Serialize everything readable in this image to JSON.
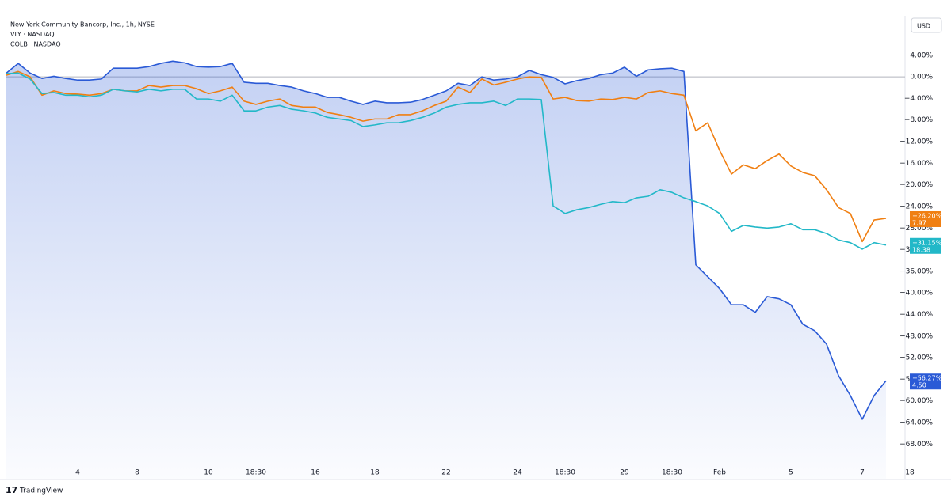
{
  "chart_data": {
    "type": "line",
    "currency": "USD",
    "brand": "TradingView",
    "categories": [
      null,
      null,
      null,
      null,
      null,
      null,
      "4",
      null,
      null,
      null,
      null,
      "8",
      null,
      null,
      null,
      null,
      null,
      "10",
      null,
      null,
      null,
      "18:30",
      null,
      null,
      null,
      null,
      "16",
      null,
      null,
      null,
      null,
      "18",
      null,
      null,
      null,
      null,
      null,
      "22",
      null,
      null,
      null,
      null,
      null,
      "24",
      null,
      null,
      null,
      "18:30",
      null,
      null,
      null,
      null,
      "29",
      null,
      null,
      null,
      "18:30",
      null,
      null,
      null,
      "Feb",
      null,
      null,
      null,
      null,
      null,
      "5",
      null,
      null,
      null,
      null,
      null,
      "7",
      null,
      null,
      null,
      "18"
    ],
    "ylim": [
      -74.4,
      11.3
    ],
    "yticks": [
      {
        "value": 4,
        "label": "4.00%"
      },
      {
        "value": 0,
        "label": "0.00%"
      },
      {
        "value": -4,
        "label": "−4.00%"
      },
      {
        "value": -8,
        "label": "−8.00%"
      },
      {
        "value": -12,
        "label": "−12.00%"
      },
      {
        "value": -16,
        "label": "−16.00%"
      },
      {
        "value": -20,
        "label": "−20.00%"
      },
      {
        "value": -24,
        "label": "−24.00%"
      },
      {
        "value": -28,
        "label": "−28.00%"
      },
      {
        "value": -32,
        "label": "−32.00%"
      },
      {
        "value": -36,
        "label": "−36.00%"
      },
      {
        "value": -40,
        "label": "−40.00%"
      },
      {
        "value": -44,
        "label": "−44.00%"
      },
      {
        "value": -48,
        "label": "−48.00%"
      },
      {
        "value": -52,
        "label": "−52.00%"
      },
      {
        "value": -56,
        "label": "−56.00%"
      },
      {
        "value": -60,
        "label": "−60.00%"
      },
      {
        "value": -64,
        "label": "−64.00%"
      },
      {
        "value": -68,
        "label": "−68.00%"
      }
    ],
    "series": [
      {
        "name": "New York Community Bancorp, Inc., 1h, NYSE",
        "color": "#2a5ad6",
        "fill": true,
        "last_value_label": "−56.27%",
        "last_price": {
          "value": 4.5,
          "label": "4.50"
        },
        "values": [
          0.7,
          2.5,
          0.7,
          -0.3,
          0.1,
          -0.3,
          -0.6,
          -0.6,
          -0.4,
          1.6,
          1.6,
          1.6,
          1.9,
          2.5,
          2.9,
          2.6,
          1.9,
          1.8,
          1.9,
          2.5,
          -1.0,
          -1.2,
          -1.2,
          -1.6,
          -1.9,
          -2.6,
          -3.1,
          -3.8,
          -3.8,
          -4.5,
          -5.1,
          -4.5,
          -4.8,
          -4.8,
          -4.7,
          -4.2,
          -3.4,
          -2.6,
          -1.2,
          -1.6,
          0,
          -0.6,
          -0.4,
          0,
          1.2,
          0.4,
          -0.1,
          -1.3,
          -0.7,
          -0.3,
          0.4,
          0.7,
          1.8,
          0.1,
          1.3,
          1.5,
          1.6,
          1.0,
          -34.8,
          -37,
          -39.2,
          -42.2,
          -42.2,
          -43.6,
          -40.7,
          -41.1,
          -42.2,
          -45.8,
          -47,
          -49.5,
          -55.3,
          -59,
          -63.4,
          -59,
          -56.27,
          null,
          null
        ]
      },
      {
        "name": "VLY · NASDAQ",
        "color": "#f07f12",
        "fill": false,
        "last_value_label": "−26.20%",
        "last_price": 7.97,
        "values": [
          0.3,
          1.0,
          0,
          -3.4,
          -2.6,
          -3.1,
          -3.2,
          -3.4,
          -3.1,
          -2.3,
          -2.6,
          -2.6,
          -1.6,
          -1.9,
          -1.6,
          -1.6,
          -2.2,
          -3.1,
          -2.6,
          -1.9,
          -4.5,
          -5.1,
          -4.5,
          -4.1,
          -5.3,
          -5.6,
          -5.6,
          -6.6,
          -7.0,
          -7.5,
          -8.2,
          -7.8,
          -7.8,
          -7.0,
          -7.0,
          -6.3,
          -5.3,
          -4.5,
          -1.9,
          -2.9,
          -0.4,
          -1.5,
          -1.0,
          -0.4,
          0,
          -0.1,
          -4.1,
          -3.8,
          -4.4,
          -4.5,
          -4.1,
          -4.2,
          -3.8,
          -4.1,
          -2.9,
          -2.6,
          -3.1,
          -3.4,
          -10.0,
          -8.5,
          -13.6,
          -18,
          -16.3,
          -17,
          -15.5,
          -14.3,
          -16.5,
          -17.7,
          -18.3,
          -20.9,
          -24.2,
          -25.3,
          -30.5,
          -26.5,
          -26.2,
          null,
          null
        ]
      },
      {
        "name": "COLB · NASDAQ",
        "color": "#22b8c8",
        "fill": false,
        "last_value_label": "−31.15%",
        "last_price": 18.38,
        "values": [
          0.6,
          0.7,
          -0.4,
          -3.1,
          -2.9,
          -3.4,
          -3.4,
          -3.7,
          -3.4,
          -2.3,
          -2.6,
          -2.8,
          -2.3,
          -2.6,
          -2.3,
          -2.3,
          -4.1,
          -4.1,
          -4.5,
          -3.4,
          -6.3,
          -6.3,
          -5.6,
          -5.3,
          -6.0,
          -6.3,
          -6.7,
          -7.5,
          -7.8,
          -8.1,
          -9.2,
          -8.9,
          -8.5,
          -8.5,
          -8.1,
          -7.5,
          -6.7,
          -5.6,
          -5.1,
          -4.8,
          -4.8,
          -4.5,
          -5.3,
          -4.1,
          -4.1,
          -4.2,
          -23.9,
          -25.3,
          -24.6,
          -24.2,
          -23.6,
          -23.1,
          -23.3,
          -22.4,
          -22.1,
          -20.9,
          -21.4,
          -22.4,
          -23.1,
          -23.9,
          -25.3,
          -28.6,
          -27.5,
          -27.8,
          -28,
          -27.8,
          -27.2,
          -28.3,
          -28.3,
          -29,
          -30.2,
          -30.7,
          -31.9,
          -30.7,
          -31.15,
          null,
          null
        ]
      }
    ]
  }
}
